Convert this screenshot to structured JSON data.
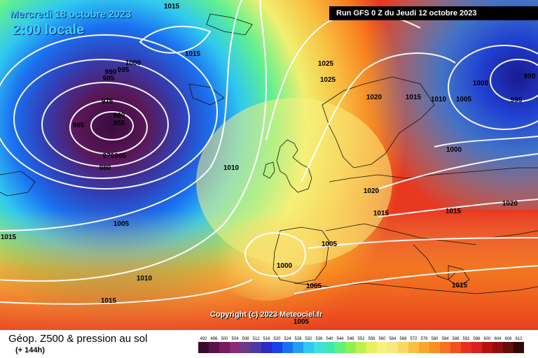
{
  "header": {
    "date": "Mercredi 18 octobre 2023",
    "time": "2:00 locale",
    "run": "Run GFS 0 Z du Jeudi 12 octobre 2023"
  },
  "copyright": "Copyright (c) 2023 Meteociel.fr",
  "footer": {
    "title": "Géop. Z500 & pression au sol",
    "subtitle": "(+ 144h)"
  },
  "legend": {
    "levels": [
      "492",
      "496",
      "500",
      "504",
      "508",
      "512",
      "516",
      "520",
      "524",
      "528",
      "532",
      "536",
      "540",
      "544",
      "548",
      "552",
      "556",
      "560",
      "564",
      "568",
      "572",
      "576",
      "580",
      "584",
      "588",
      "592",
      "596",
      "600",
      "604",
      "608",
      "612"
    ],
    "colors": [
      "#3a0a2e",
      "#5a1048",
      "#7a1a60",
      "#8a2a78",
      "#6a3a8a",
      "#4a3aa8",
      "#2a2ac8",
      "#1a40e8",
      "#1a70f0",
      "#20a0f0",
      "#30c8f0",
      "#40e0e0",
      "#40e8b0",
      "#60f080",
      "#90f050",
      "#c0f050",
      "#e8f060",
      "#f8f080",
      "#f8e880",
      "#f8d860",
      "#f8c040",
      "#f8a830",
      "#f89020",
      "#f87020",
      "#f05020",
      "#e83020",
      "#d82020",
      "#b81010",
      "#901010",
      "#601008",
      "#300804"
    ]
  },
  "pressure_labels": [
    "1015",
    "1015",
    "1000",
    "990",
    "995",
    "985",
    "975",
    "960",
    "955",
    "965",
    "970",
    "965",
    "980",
    "1010",
    "1005",
    "1015",
    "1010",
    "1015",
    "1025",
    "1025",
    "1020",
    "1015",
    "1010",
    "1005",
    "1000",
    "995",
    "990",
    "1000",
    "1020",
    "1015",
    "1015",
    "1020",
    "1005",
    "1000",
    "1005",
    "1015",
    "1005"
  ],
  "map_colors": {
    "deep_low": "#3a0a3e",
    "low": "#2030c0",
    "mid_blue": "#1a80f0",
    "cyan": "#30d0f0",
    "green": "#70e070",
    "yellow": "#f8f080",
    "orange": "#f8a830",
    "red": "#e83020",
    "isobar": "#ffffff",
    "coast": "#101010"
  }
}
